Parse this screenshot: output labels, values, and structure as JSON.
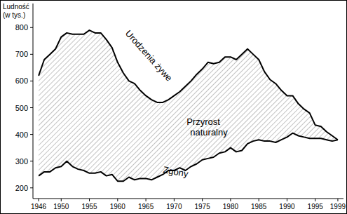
{
  "chart_data": {
    "type": "line",
    "y_label": "Ludność (w tys.)",
    "annotations": [
      "Przyrost naturalny"
    ],
    "x": [
      1946,
      1947,
      1948,
      1949,
      1950,
      1951,
      1952,
      1953,
      1954,
      1955,
      1956,
      1957,
      1958,
      1959,
      1960,
      1961,
      1962,
      1963,
      1964,
      1965,
      1966,
      1967,
      1968,
      1969,
      1970,
      1971,
      1972,
      1973,
      1974,
      1975,
      1976,
      1977,
      1978,
      1979,
      1980,
      1981,
      1982,
      1983,
      1984,
      1985,
      1986,
      1987,
      1988,
      1989,
      1990,
      1991,
      1992,
      1993,
      1994,
      1995,
      1996,
      1997,
      1998,
      1999
    ],
    "series": [
      {
        "name": "Urodzenia żywe",
        "color": "#000000",
        "values": [
          620,
          680,
          700,
          720,
          765,
          780,
          775,
          775,
          775,
          790,
          780,
          780,
          755,
          725,
          670,
          630,
          600,
          590,
          565,
          545,
          530,
          520,
          520,
          530,
          545,
          560,
          580,
          600,
          625,
          645,
          670,
          665,
          670,
          690,
          690,
          680,
          700,
          720,
          700,
          680,
          635,
          605,
          590,
          565,
          545,
          545,
          515,
          495,
          480,
          435,
          430,
          410,
          395,
          380
        ]
      },
      {
        "name": "Zgony",
        "color": "#000000",
        "values": [
          245,
          260,
          260,
          275,
          280,
          300,
          280,
          270,
          265,
          255,
          255,
          260,
          245,
          250,
          225,
          225,
          240,
          230,
          235,
          235,
          230,
          240,
          250,
          265,
          265,
          275,
          265,
          280,
          290,
          305,
          310,
          315,
          330,
          335,
          350,
          335,
          340,
          365,
          375,
          380,
          375,
          375,
          370,
          380,
          390,
          405,
          395,
          390,
          385,
          385,
          385,
          380,
          375,
          380
        ]
      }
    ],
    "xlim": [
      1945,
      2000
    ],
    "xticks": [
      1946,
      1950,
      1955,
      1960,
      1965,
      1970,
      1975,
      1980,
      1985,
      1990,
      1995,
      1999
    ],
    "ylim": [
      160,
      890
    ],
    "yticks": [
      200,
      300,
      400,
      500,
      600,
      700,
      800
    ],
    "grid": false
  }
}
